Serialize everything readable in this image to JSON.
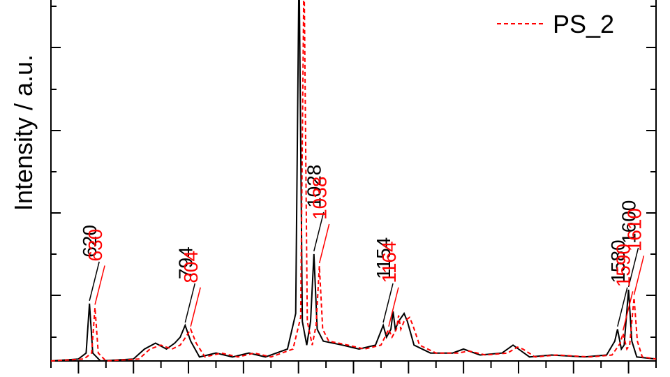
{
  "chart_data": {
    "type": "line",
    "title": "",
    "xlabel": "",
    "ylabel": "Intensity / a.u.",
    "xlim": [
      550,
      1650
    ],
    "ylim": [
      0,
      1.0
    ],
    "grid": false,
    "legend": {
      "placement": "top-right"
    },
    "colors": {
      "series1": "#000000",
      "series2": "#ff0000"
    },
    "series": [
      {
        "name": "",
        "color": "#000000",
        "style": "solid",
        "points": [
          [
            550,
            0.0
          ],
          [
            600,
            0.005
          ],
          [
            614,
            0.02
          ],
          [
            620,
            0.145
          ],
          [
            626,
            0.02
          ],
          [
            640,
            0.0
          ],
          [
            700,
            0.005
          ],
          [
            720,
            0.03
          ],
          [
            740,
            0.045
          ],
          [
            760,
            0.03
          ],
          [
            775,
            0.045
          ],
          [
            785,
            0.06
          ],
          [
            794,
            0.09
          ],
          [
            804,
            0.05
          ],
          [
            820,
            0.01
          ],
          [
            850,
            0.02
          ],
          [
            880,
            0.01
          ],
          [
            910,
            0.02
          ],
          [
            940,
            0.01
          ],
          [
            980,
            0.03
          ],
          [
            995,
            0.12
          ],
          [
            1001,
            1.0
          ],
          [
            1007,
            0.1
          ],
          [
            1015,
            0.04
          ],
          [
            1022,
            0.1
          ],
          [
            1028,
            0.27
          ],
          [
            1034,
            0.08
          ],
          [
            1045,
            0.05
          ],
          [
            1080,
            0.04
          ],
          [
            1110,
            0.03
          ],
          [
            1140,
            0.04
          ],
          [
            1154,
            0.09
          ],
          [
            1160,
            0.06
          ],
          [
            1168,
            0.08
          ],
          [
            1172,
            0.125
          ],
          [
            1176,
            0.08
          ],
          [
            1182,
            0.1
          ],
          [
            1192,
            0.12
          ],
          [
            1198,
            0.1
          ],
          [
            1210,
            0.04
          ],
          [
            1240,
            0.02
          ],
          [
            1280,
            0.02
          ],
          [
            1300,
            0.03
          ],
          [
            1330,
            0.015
          ],
          [
            1370,
            0.02
          ],
          [
            1390,
            0.04
          ],
          [
            1400,
            0.03
          ],
          [
            1420,
            0.01
          ],
          [
            1460,
            0.015
          ],
          [
            1520,
            0.01
          ],
          [
            1560,
            0.015
          ],
          [
            1575,
            0.05
          ],
          [
            1580,
            0.08
          ],
          [
            1587,
            0.03
          ],
          [
            1592,
            0.04
          ],
          [
            1600,
            0.18
          ],
          [
            1606,
            0.05
          ],
          [
            1615,
            0.01
          ],
          [
            1650,
            0.005
          ]
        ]
      },
      {
        "name": "PS_2",
        "color": "#ff0000",
        "style": "dashed",
        "points": [
          [
            550,
            0.0
          ],
          [
            610,
            0.005
          ],
          [
            624,
            0.02
          ],
          [
            630,
            0.135
          ],
          [
            636,
            0.02
          ],
          [
            650,
            0.0
          ],
          [
            710,
            0.005
          ],
          [
            730,
            0.03
          ],
          [
            750,
            0.04
          ],
          [
            770,
            0.03
          ],
          [
            785,
            0.04
          ],
          [
            795,
            0.06
          ],
          [
            804,
            0.08
          ],
          [
            814,
            0.045
          ],
          [
            830,
            0.01
          ],
          [
            860,
            0.02
          ],
          [
            890,
            0.01
          ],
          [
            920,
            0.02
          ],
          [
            950,
            0.01
          ],
          [
            990,
            0.03
          ],
          [
            1004,
            0.11
          ],
          [
            1010,
            1.0
          ],
          [
            1016,
            0.1
          ],
          [
            1025,
            0.04
          ],
          [
            1032,
            0.09
          ],
          [
            1038,
            0.24
          ],
          [
            1044,
            0.08
          ],
          [
            1055,
            0.05
          ],
          [
            1090,
            0.04
          ],
          [
            1120,
            0.03
          ],
          [
            1150,
            0.04
          ],
          [
            1164,
            0.08
          ],
          [
            1170,
            0.06
          ],
          [
            1178,
            0.08
          ],
          [
            1182,
            0.115
          ],
          [
            1186,
            0.08
          ],
          [
            1192,
            0.1
          ],
          [
            1202,
            0.11
          ],
          [
            1208,
            0.09
          ],
          [
            1220,
            0.04
          ],
          [
            1250,
            0.02
          ],
          [
            1290,
            0.02
          ],
          [
            1310,
            0.025
          ],
          [
            1340,
            0.015
          ],
          [
            1380,
            0.02
          ],
          [
            1398,
            0.035
          ],
          [
            1408,
            0.03
          ],
          [
            1430,
            0.01
          ],
          [
            1470,
            0.015
          ],
          [
            1530,
            0.01
          ],
          [
            1570,
            0.015
          ],
          [
            1585,
            0.045
          ],
          [
            1590,
            0.07
          ],
          [
            1597,
            0.03
          ],
          [
            1602,
            0.04
          ],
          [
            1610,
            0.16
          ],
          [
            1616,
            0.05
          ],
          [
            1625,
            0.01
          ],
          [
            1650,
            0.005
          ]
        ]
      }
    ],
    "peak_labels": [
      {
        "text": "620",
        "color": "#000000",
        "x": 620,
        "y": 0.145
      },
      {
        "text": "630",
        "color": "#ff0000",
        "x": 630,
        "y": 0.135
      },
      {
        "text": "794",
        "color": "#000000",
        "x": 794,
        "y": 0.09
      },
      {
        "text": "804",
        "color": "#ff0000",
        "x": 804,
        "y": 0.08
      },
      {
        "text": "1028",
        "color": "#000000",
        "x": 1028,
        "y": 0.27
      },
      {
        "text": "1038",
        "color": "#ff0000",
        "x": 1038,
        "y": 0.24
      },
      {
        "text": "1154",
        "color": "#000000",
        "x": 1154,
        "y": 0.09
      },
      {
        "text": "1164",
        "color": "#ff0000",
        "x": 1164,
        "y": 0.08
      },
      {
        "text": "1580",
        "color": "#000000",
        "x": 1580,
        "y": 0.08
      },
      {
        "text": "1590",
        "color": "#ff0000",
        "x": 1590,
        "y": 0.07
      },
      {
        "text": "1600",
        "color": "#000000",
        "x": 1600,
        "y": 0.18
      },
      {
        "text": "1610",
        "color": "#ff0000",
        "x": 1610,
        "y": 0.16
      }
    ]
  }
}
